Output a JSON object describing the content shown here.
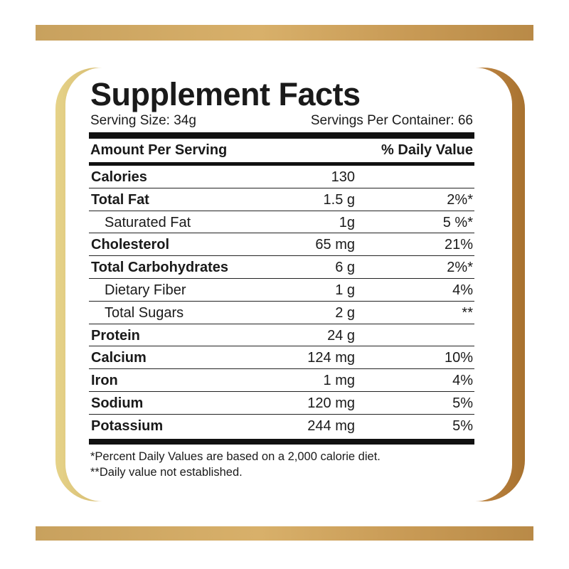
{
  "label": {
    "title": "Supplement Facts",
    "serving_size": "Serving Size: 34g",
    "servings_per_container": "Servings Per Container: 66",
    "header_left": "Amount Per Serving",
    "header_right": "% Daily Value",
    "rows": [
      {
        "name": "Calories",
        "amount": "130",
        "dv": ""
      },
      {
        "name": "Total Fat",
        "amount": "1.5 g",
        "dv": "2%*"
      },
      {
        "name": "Saturated Fat",
        "amount": "1g",
        "dv": "5 %*"
      },
      {
        "name": "Cholesterol",
        "amount": "65 mg",
        "dv": "21%"
      },
      {
        "name": "Total Carbohydrates",
        "amount": "6 g",
        "dv": "2%*"
      },
      {
        "name": "Dietary Fiber",
        "amount": "1 g",
        "dv": "4%"
      },
      {
        "name": "Total Sugars",
        "amount": "2 g",
        "dv": "**"
      },
      {
        "name": "Protein",
        "amount": "24 g",
        "dv": ""
      },
      {
        "name": "Calcium",
        "amount": "124 mg",
        "dv": "10%"
      },
      {
        "name": "Iron",
        "amount": "1 mg",
        "dv": "4%"
      },
      {
        "name": "Sodium",
        "amount": "120 mg",
        "dv": "5%"
      },
      {
        "name": "Potassium",
        "amount": "244 mg",
        "dv": "5%"
      }
    ],
    "footnote_1": "*Percent Daily Values are based on a 2,000 calorie diet.",
    "footnote_2": "**Daily value not established."
  },
  "colors": {
    "gold_light": "#e6d389",
    "gold_mid": "#d8b16a",
    "gold_dark": "#a8722f"
  }
}
